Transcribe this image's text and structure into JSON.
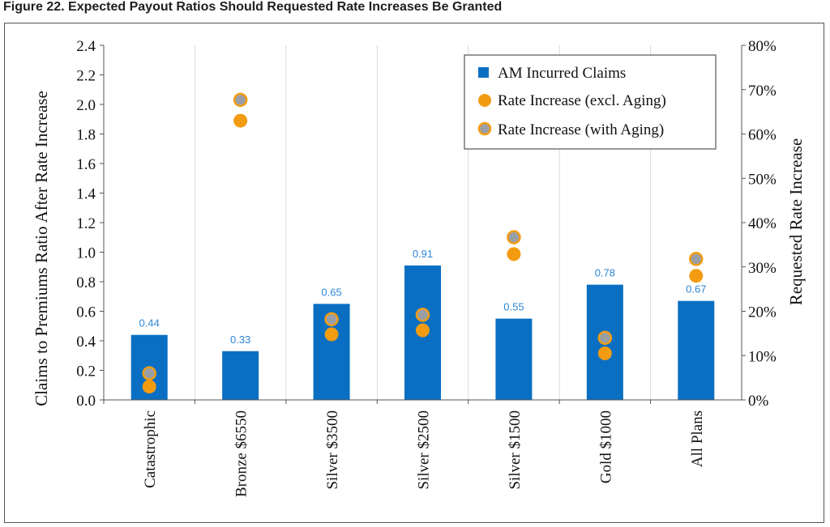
{
  "figure": {
    "title": "Figure 22.  Expected Payout Ratios Should Requested Rate Increases Be Granted"
  },
  "colors": {
    "bar": "#0a6fc2",
    "bar_label": "#2e86d6",
    "dot_excl": "#f39c12",
    "dot_with_fill": "#9a9fa6",
    "dot_with_ring": "#f39c12",
    "grid": "#d9d9d9",
    "text": "#111111"
  },
  "chart_data": {
    "type": "bar",
    "categories": [
      "Catastrophic",
      "Bronze $6550",
      "Silver $3500",
      "Silver $2500",
      "Silver $1500",
      "Gold $1000",
      "All Plans"
    ],
    "series": [
      {
        "name": "AM Incurred Claims",
        "kind": "bar",
        "axis": "left",
        "values": [
          0.44,
          0.33,
          0.65,
          0.91,
          0.55,
          0.78,
          0.67
        ],
        "labels": [
          "0.44",
          "0.33",
          "0.65",
          "0.91",
          "0.55",
          "0.78",
          "0.67"
        ]
      },
      {
        "name": "Rate Increase (excl. Aging)",
        "kind": "dot",
        "axis": "right",
        "values": [
          0.03,
          0.63,
          0.148,
          0.157,
          0.329,
          0.105,
          0.28
        ]
      },
      {
        "name": "Rate Increase (with Aging)",
        "kind": "dot",
        "axis": "right",
        "values": [
          0.06,
          0.677,
          0.182,
          0.192,
          0.367,
          0.14,
          0.318
        ]
      }
    ],
    "ylabel": "Claims to Premiums Ratio After Rate Increase",
    "y2label": "Requested Rate Increase",
    "ylim": [
      0,
      2.4
    ],
    "y2lim": [
      0,
      0.8
    ],
    "yticks": [
      "0.0",
      "0.2",
      "0.4",
      "0.6",
      "0.8",
      "1.0",
      "1.2",
      "1.4",
      "1.6",
      "1.8",
      "2.0",
      "2.2",
      "2.4"
    ],
    "y2ticks": [
      "0%",
      "10%",
      "20%",
      "30%",
      "40%",
      "50%",
      "60%",
      "70%",
      "80%"
    ],
    "grid": "vertical category dividers",
    "legend": "top-right"
  }
}
